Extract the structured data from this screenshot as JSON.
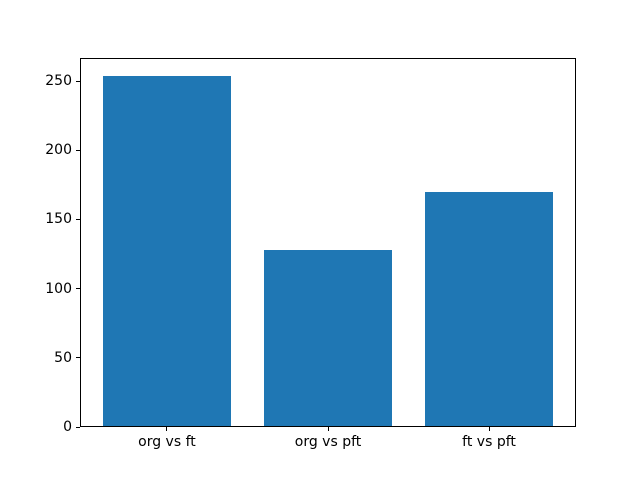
{
  "figure": {
    "background": "#ffffff",
    "axes_background": "#ffffff",
    "spine_color": "#000000",
    "tick_color": "#000000",
    "text_color": "#000000"
  },
  "chart_data": {
    "type": "bar",
    "categories": [
      "org vs ft",
      "org vs pft",
      "ft vs pft"
    ],
    "values": [
      254,
      128,
      170
    ],
    "title": "",
    "xlabel": "",
    "ylabel": "",
    "yticks": [
      0,
      50,
      100,
      150,
      200,
      250
    ],
    "ylim": [
      0,
      266.7
    ],
    "bar_color": "#1f77b4",
    "bar_width_fraction": 0.8,
    "grid": false,
    "legend": false
  }
}
